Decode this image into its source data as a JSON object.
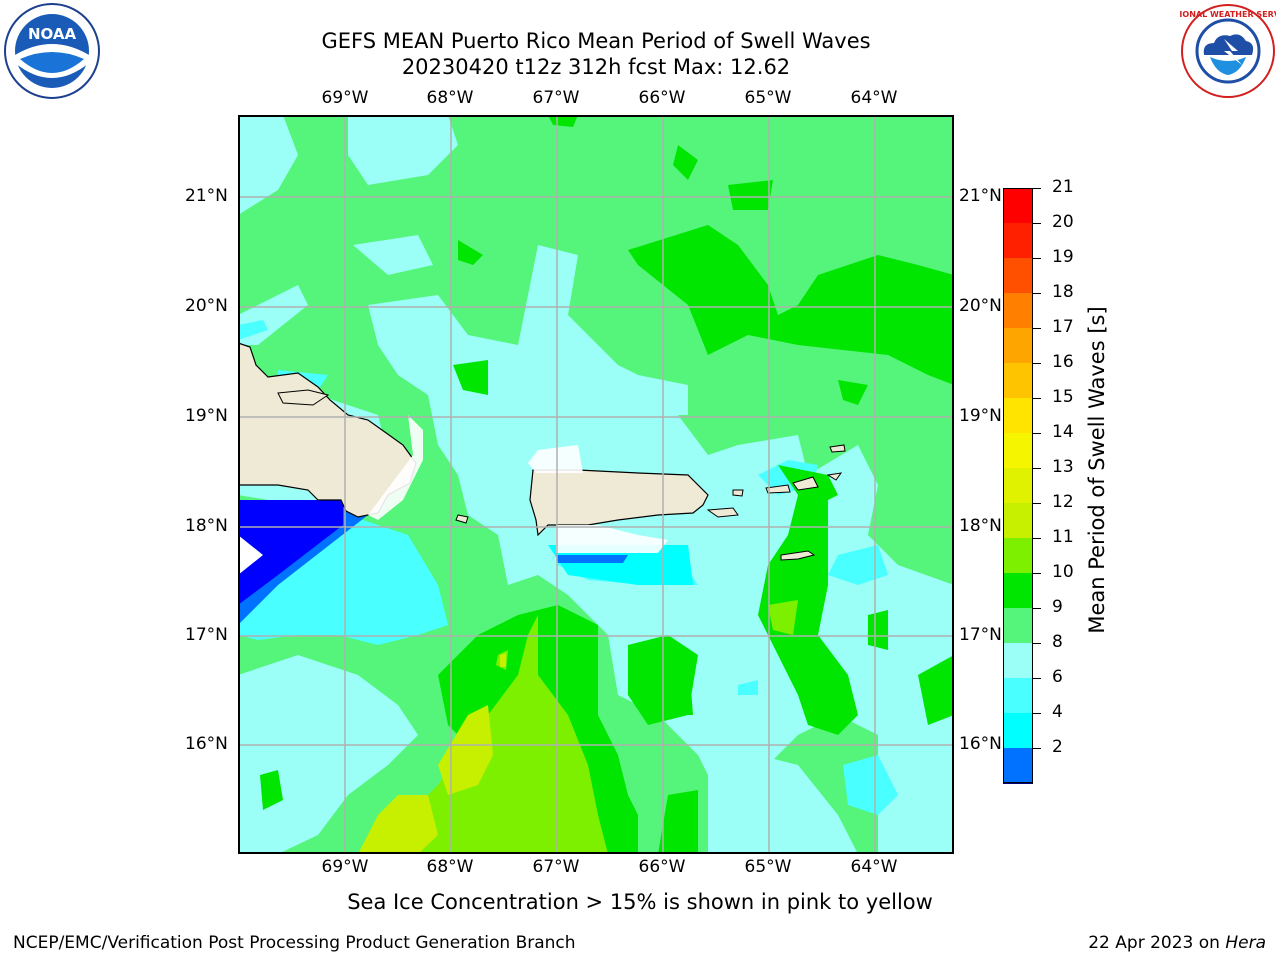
{
  "title": {
    "line1": "GEFS MEAN Puerto Rico Mean Period of Swell Waves",
    "line2": "20230420 t12z 312h fcst   Max: 12.62"
  },
  "axes": {
    "lon_labels": [
      "69°W",
      "68°W",
      "67°W",
      "66°W",
      "65°W",
      "64°W"
    ],
    "lat_labels": [
      "21°N",
      "20°N",
      "19°N",
      "18°N",
      "17°N",
      "16°N"
    ]
  },
  "colorbar": {
    "label": "Mean Period of Swell Waves [s]",
    "ticks": [
      "21",
      "20",
      "19",
      "18",
      "17",
      "16",
      "15",
      "14",
      "13",
      "12",
      "11",
      "10",
      "9",
      "8",
      "6",
      "4",
      "2"
    ],
    "colors": [
      "#ff0000",
      "#ff2000",
      "#ff5000",
      "#ff8000",
      "#ffa500",
      "#ffc400",
      "#ffe400",
      "#f5f500",
      "#e0f200",
      "#c7f000",
      "#7df000",
      "#00e600",
      "#54f57a",
      "#9bfff8",
      "#49ffff",
      "#00ffff",
      "#0072ff",
      "#0000ff"
    ]
  },
  "note": "Sea Ice Concentration > 15% is shown in pink to yellow",
  "footer": {
    "left": "NCEP/EMC/Verification Post Processing Product Generation Branch",
    "date": "22 Apr 2023 on ",
    "machine": "Hera"
  },
  "logos": {
    "noaa_text": "NOAA",
    "nws_text": "NATIONAL WEATHER SERVICE"
  }
}
